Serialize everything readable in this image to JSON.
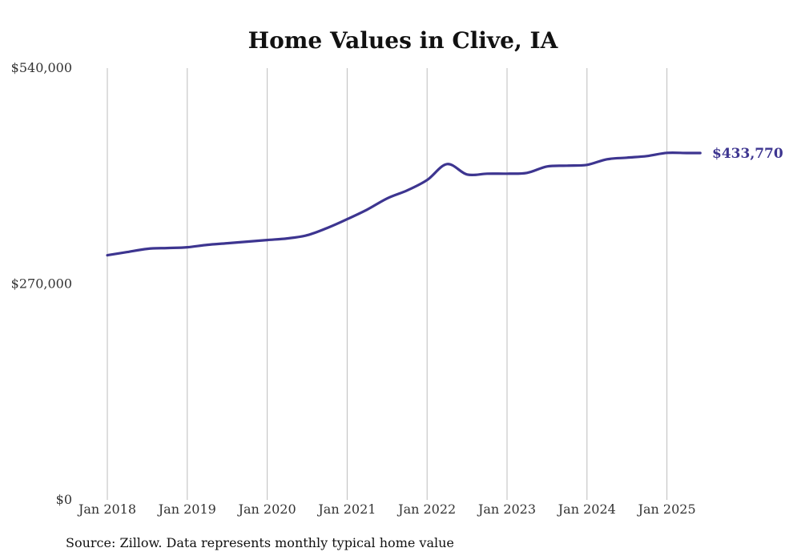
{
  "chart_data": {
    "type": "line",
    "title": "Home Values in Clive, IA",
    "xlabel": "",
    "ylabel": "",
    "ylim": [
      0,
      540000
    ],
    "y_ticks": [
      {
        "value": 0,
        "label": "$0"
      },
      {
        "value": 270000,
        "label": "$270,000"
      },
      {
        "value": 540000,
        "label": "$540,000"
      }
    ],
    "x_ticks": [
      "Jan 2018",
      "Jan 2019",
      "Jan 2020",
      "Jan 2021",
      "Jan 2022",
      "Jan 2023",
      "Jan 2024",
      "Jan 2025"
    ],
    "grid": "vertical",
    "series": [
      {
        "color": "#3d3590",
        "x": [
          "Jan 2018",
          "Apr 2018",
          "Jul 2018",
          "Oct 2018",
          "Jan 2019",
          "Apr 2019",
          "Jul 2019",
          "Oct 2019",
          "Jan 2020",
          "Apr 2020",
          "Jul 2020",
          "Oct 2020",
          "Jan 2021",
          "Apr 2021",
          "Jul 2021",
          "Oct 2021",
          "Jan 2022",
          "Apr 2022",
          "Jul 2022",
          "Oct 2022",
          "Jan 2023",
          "Apr 2023",
          "Jul 2023",
          "Oct 2023",
          "Jan 2024",
          "Apr 2024",
          "Jul 2024",
          "Oct 2024",
          "Jan 2025",
          "Apr 2025",
          "Jun 2025"
        ],
        "values": [
          306000,
          310000,
          314000,
          315000,
          316000,
          319000,
          321000,
          323000,
          325000,
          327000,
          331000,
          340000,
          351000,
          363000,
          377000,
          387000,
          400000,
          420000,
          407000,
          408000,
          408000,
          409000,
          417000,
          418000,
          419000,
          426000,
          428000,
          430000,
          434000,
          433800,
          433770
        ]
      }
    ],
    "end_label": "$433,770"
  },
  "source_note": "Source: Zillow. Data represents monthly typical home value"
}
